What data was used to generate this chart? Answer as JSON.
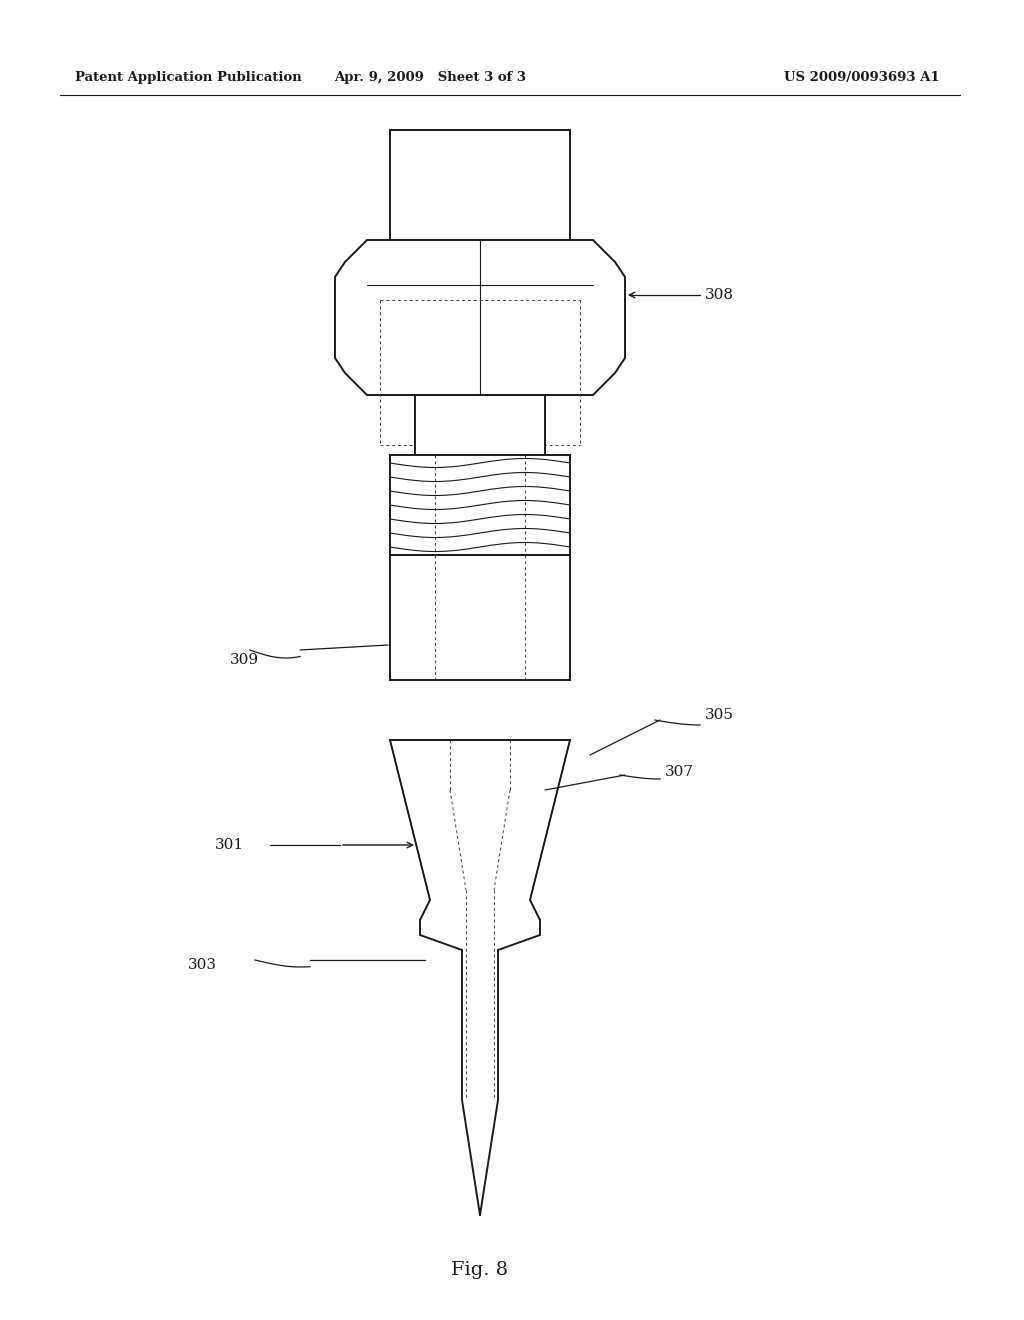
{
  "bg_color": "#ffffff",
  "header_left": "Patent Application Publication",
  "header_mid": "Apr. 9, 2009   Sheet 3 of 3",
  "header_right": "US 2009/0093693 A1",
  "fig_label": "Fig. 8",
  "dark": "#1a1a1a",
  "lw_main": 1.4,
  "lw_thin": 0.8,
  "lw_dot": 0.7
}
